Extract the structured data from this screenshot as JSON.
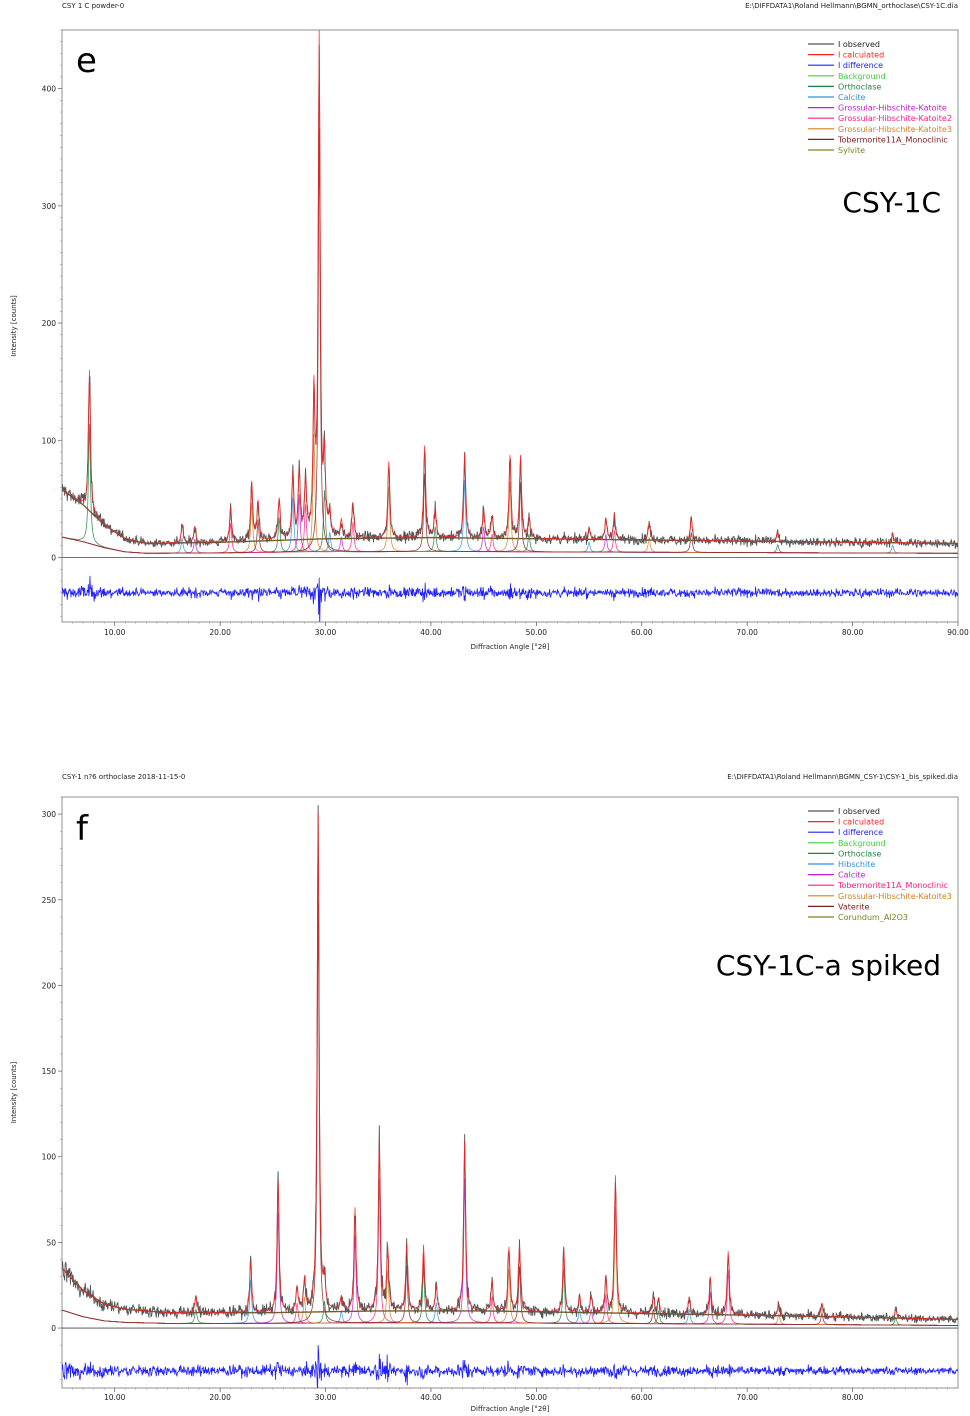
{
  "chart_data": [
    {
      "type": "line",
      "panel_label": "e",
      "sample_label": "CSY-1C",
      "header_left": "CSY 1 C powder-0",
      "header_right": "E:\\DIFFDATA1\\Roland Hellmann\\BGMN_orthoclase\\CSY-1C.dia",
      "xlabel": "Diffraction Angle [°2θ]",
      "ylabel": "Intensity [counts]",
      "xlim": [
        5,
        90
      ],
      "ylim": [
        -55,
        450
      ],
      "x_ticks": [
        "10.00",
        "20.00",
        "30.00",
        "40.00",
        "50.00",
        "60.00",
        "70.00",
        "80.00",
        "90.00"
      ],
      "y_ticks": [
        "0",
        "100",
        "200",
        "300",
        "400"
      ],
      "legend_position": "top-right",
      "series": [
        {
          "name": "I observed",
          "color": "#555555"
        },
        {
          "name": "I calculated",
          "color": "#ff2020"
        },
        {
          "name": "I difference",
          "color": "#2020ff"
        },
        {
          "name": "Background",
          "color": "#40d040"
        },
        {
          "name": "Orthoclase",
          "color": "#208040"
        },
        {
          "name": "Calcite",
          "color": "#3090e0"
        },
        {
          "name": "Grossular-Hibschite-Katoite",
          "color": "#c020d0"
        },
        {
          "name": "Grossular-Hibschite-Katoite2",
          "color": "#ff2080"
        },
        {
          "name": "Grossular-Hibschite-Katoite3",
          "color": "#d08020"
        },
        {
          "name": "Tobermorite11A_Monoclinic",
          "color": "#802020"
        },
        {
          "name": "Sylvite",
          "color": "#808020"
        }
      ],
      "background": [
        [
          5,
          58
        ],
        [
          7,
          45
        ],
        [
          9,
          28
        ],
        [
          11,
          16
        ],
        [
          13,
          12
        ],
        [
          20,
          13
        ],
        [
          30,
          16
        ],
        [
          40,
          17
        ],
        [
          50,
          16
        ],
        [
          60,
          15
        ],
        [
          70,
          14
        ],
        [
          80,
          13
        ],
        [
          90,
          12
        ]
      ],
      "peaks": [
        [
          7.6,
          120
        ],
        [
          16.4,
          15
        ],
        [
          17.6,
          14
        ],
        [
          21.0,
          30
        ],
        [
          23.0,
          50
        ],
        [
          23.6,
          33
        ],
        [
          25.6,
          35
        ],
        [
          26.9,
          55
        ],
        [
          27.5,
          58
        ],
        [
          28.1,
          48
        ],
        [
          28.9,
          118
        ],
        [
          29.4,
          425
        ],
        [
          29.9,
          62
        ],
        [
          30.4,
          20
        ],
        [
          31.5,
          15
        ],
        [
          32.6,
          30
        ],
        [
          36.0,
          65
        ],
        [
          39.4,
          78
        ],
        [
          40.4,
          25
        ],
        [
          43.2,
          72
        ],
        [
          45.0,
          25
        ],
        [
          45.8,
          18
        ],
        [
          47.5,
          70
        ],
        [
          48.5,
          70
        ],
        [
          49.3,
          18
        ],
        [
          55.0,
          10
        ],
        [
          56.6,
          18
        ],
        [
          57.4,
          22
        ],
        [
          60.7,
          15
        ],
        [
          64.7,
          20
        ],
        [
          72.9,
          8
        ],
        [
          83.8,
          8
        ]
      ],
      "difference_offset": -30
    },
    {
      "type": "line",
      "panel_label": "f",
      "sample_label": "CSY-1C-a spiked",
      "header_left": "CSY-1 n?6 orthoclase 2018-11-15-0",
      "header_right": "E:\\DIFFDATA1\\Roland Hellmann\\BGMN_CSY-1\\CSY-1_bis_spiked.dia",
      "xlabel": "Diffraction Angle [°2θ]",
      "ylabel": "Intensity [counts]",
      "xlim": [
        5,
        90
      ],
      "ylim": [
        -35,
        310
      ],
      "x_ticks": [
        "10.00",
        "20.00",
        "30.00",
        "40.00",
        "50.00",
        "60.00",
        "70.00",
        "80.00"
      ],
      "y_ticks": [
        "0",
        "50",
        "100",
        "150",
        "200",
        "250",
        "300"
      ],
      "legend_position": "top-right",
      "series": [
        {
          "name": "I observed",
          "color": "#555555"
        },
        {
          "name": "I calculated",
          "color": "#ff2020"
        },
        {
          "name": "I difference",
          "color": "#2020ff"
        },
        {
          "name": "Background",
          "color": "#40d040"
        },
        {
          "name": "Orthoclase",
          "color": "#208040"
        },
        {
          "name": "Hibschite",
          "color": "#3090e0"
        },
        {
          "name": "Calcite",
          "color": "#c020d0"
        },
        {
          "name": "Tobermorite11A_Monoclinic",
          "color": "#ff2080"
        },
        {
          "name": "Grossular-Hibschite-Katoite3",
          "color": "#d08020"
        },
        {
          "name": "Vaterite",
          "color": "#802020"
        },
        {
          "name": "Corundum_Al2O3",
          "color": "#808020"
        }
      ],
      "background": [
        [
          5,
          35
        ],
        [
          7,
          22
        ],
        [
          9,
          14
        ],
        [
          11,
          11
        ],
        [
          15,
          9
        ],
        [
          25,
          9
        ],
        [
          35,
          10
        ],
        [
          45,
          10
        ],
        [
          55,
          9
        ],
        [
          65,
          8
        ],
        [
          75,
          7
        ],
        [
          90,
          5
        ]
      ],
      "peaks": [
        [
          17.7,
          10
        ],
        [
          22.9,
          30
        ],
        [
          25.5,
          76
        ],
        [
          27.3,
          14
        ],
        [
          28.0,
          18
        ],
        [
          29.3,
          290
        ],
        [
          29.9,
          15
        ],
        [
          31.5,
          8
        ],
        [
          32.8,
          60
        ],
        [
          35.1,
          99
        ],
        [
          35.9,
          36
        ],
        [
          37.7,
          39
        ],
        [
          39.3,
          38
        ],
        [
          40.5,
          14
        ],
        [
          43.2,
          99
        ],
        [
          45.8,
          18
        ],
        [
          47.4,
          37
        ],
        [
          48.4,
          39
        ],
        [
          52.6,
          37
        ],
        [
          54.1,
          10
        ],
        [
          55.2,
          10
        ],
        [
          56.6,
          20
        ],
        [
          57.5,
          80
        ],
        [
          61.1,
          10
        ],
        [
          61.6,
          9
        ],
        [
          64.5,
          10
        ],
        [
          66.5,
          22
        ],
        [
          68.2,
          37
        ],
        [
          73.0,
          7
        ],
        [
          77.1,
          8
        ],
        [
          84.1,
          5
        ]
      ],
      "difference_offset": -25
    }
  ]
}
